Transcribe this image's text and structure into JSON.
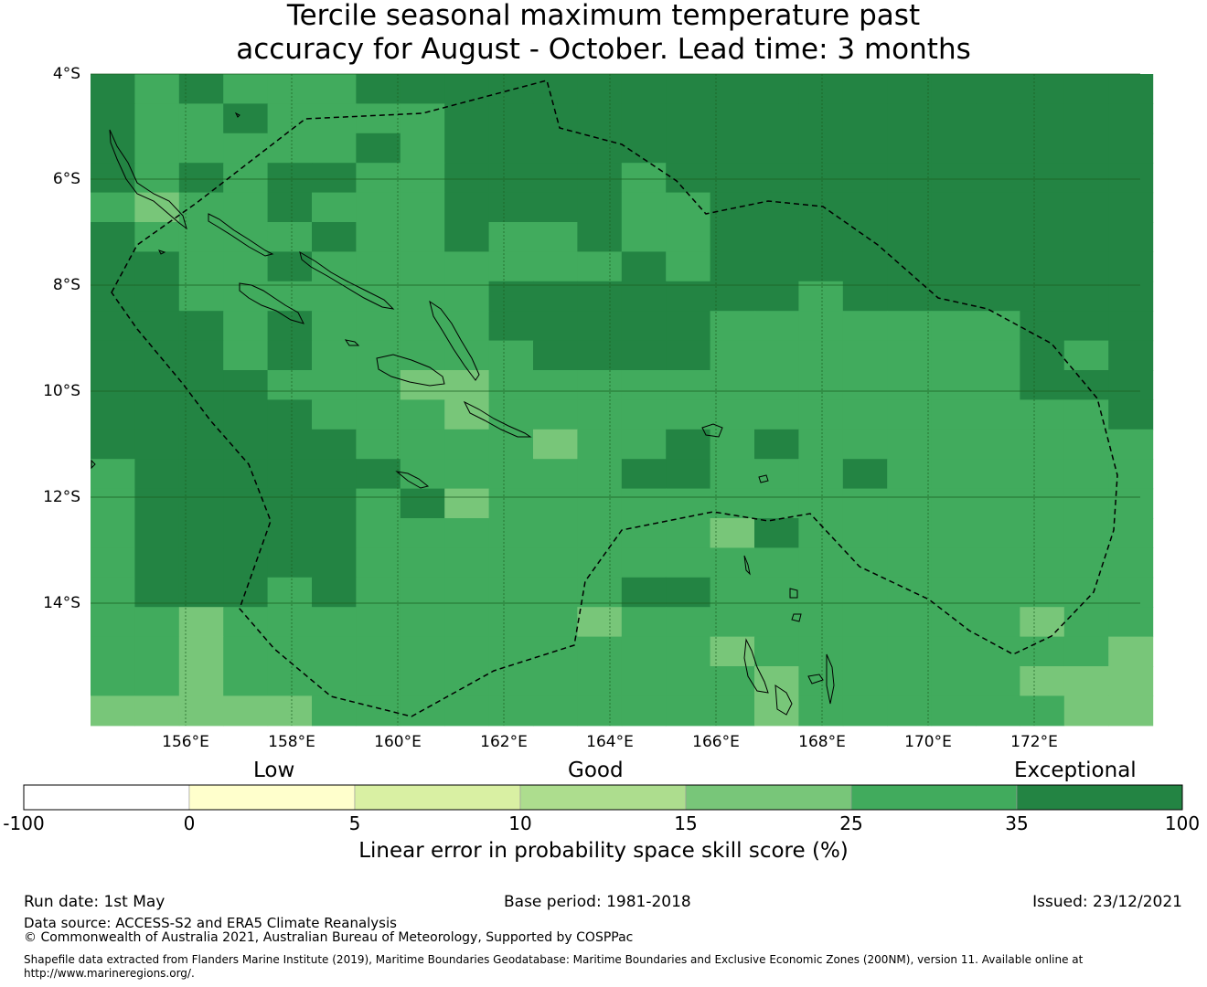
{
  "title_line1": "Tercile seasonal maximum temperature past",
  "title_line2": "accuracy for August - October. Lead time: 3 months",
  "map": {
    "lat_labels": [
      "4°S",
      "6°S",
      "8°S",
      "10°S",
      "12°S",
      "14°S"
    ],
    "lon_labels": [
      "156°E",
      "158°E",
      "160°E",
      "162°E",
      "164°E",
      "166°E",
      "168°E",
      "170°E",
      "172°E"
    ],
    "grid_color": "#1b5e20"
  },
  "colorbar": {
    "categories": [
      "Low",
      "Good",
      "Exceptional"
    ],
    "ticks": [
      "-100",
      "0",
      "5",
      "10",
      "15",
      "25",
      "35",
      "100"
    ],
    "colors": [
      "#ffffff",
      "#ffffcc",
      "#d9f0a3",
      "#addd8e",
      "#78c679",
      "#41ab5d",
      "#238443"
    ],
    "label": "Linear error in probability space skill score (%)"
  },
  "footer": {
    "run_date": "Run date: 1st May",
    "base_period": "Base period: 1981-2018",
    "issued": "Issued: 23/12/2021",
    "data_source": "Data source: ACCESS-S2 and ERA5 Climate Reanalysis",
    "copyright": "© Commonwealth of Australia 2021, Australian Bureau of Meteorology, Supported by COSPPac",
    "shapefile_line1": "Shapefile data extracted from Flanders Marine Institute (2019), Maritime Boundaries Geodatabase: Maritime Boundaries and Exclusive Economic Zones (200NM), version 11. Available online at",
    "shapefile_line2": "http://www.marineregions.org/."
  }
}
